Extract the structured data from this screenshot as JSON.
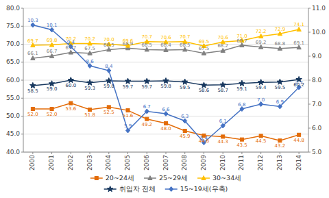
{
  "chart_data": {
    "type": "line",
    "categories": [
      "2000",
      "2001",
      "2002",
      "2003",
      "2004",
      "2005",
      "2006",
      "2007",
      "2008",
      "2009",
      "2010",
      "2011",
      "2012",
      "2013",
      "2014"
    ],
    "ylim": [
      40.0,
      80.0
    ],
    "yticks": [
      {
        "value": 40.0,
        "label": "40.0"
      },
      {
        "value": 45.0,
        "label": "45.0"
      },
      {
        "value": 50.0,
        "label": "50.0"
      },
      {
        "value": 55.0,
        "label": "55.0"
      },
      {
        "value": 60.0,
        "label": "60.0"
      },
      {
        "value": 65.0,
        "label": "65.0"
      },
      {
        "value": 70.0,
        "label": "70.0"
      },
      {
        "value": 75.0,
        "label": "75.0"
      },
      {
        "value": 80.0,
        "label": "80.0"
      }
    ],
    "y2lim": [
      5.0,
      11.0
    ],
    "y2ticks": [
      {
        "value": 5.0,
        "label": "5.0"
      },
      {
        "value": 6.0,
        "label": "6.0"
      },
      {
        "value": 7.0,
        "label": "7.0"
      },
      {
        "value": 8.0,
        "label": "8.0"
      },
      {
        "value": 9.0,
        "label": "9.0"
      },
      {
        "value": 10.0,
        "label": "10.0"
      },
      {
        "value": 11.0,
        "label": "11.0"
      }
    ],
    "grid": true,
    "legend": "bottom",
    "data_labels": true,
    "series": [
      {
        "name": "20~24세",
        "color": "#e36c09",
        "marker": "square",
        "values": [
          52.0,
          52.0,
          53.6,
          51.8,
          52.5,
          51.6,
          49.2,
          48.0,
          45.9,
          44.6,
          44.3,
          43.5,
          44.5,
          43.2,
          44.8
        ],
        "value_labels": [
          "52.0",
          "52.0",
          "53.6",
          "51.8",
          "52.5",
          "51.6",
          "49.2",
          "48.0",
          "45.9",
          "44.6",
          "44.3",
          "43.5",
          "44.5",
          "43.2",
          "44.8"
        ]
      },
      {
        "name": "25~29세",
        "color": "#808080",
        "marker": "triangle",
        "values": [
          66.1,
          66.7,
          67.7,
          67.5,
          68.5,
          68.9,
          68.5,
          68.4,
          68.5,
          67.5,
          68.2,
          69.7,
          69.2,
          68.8,
          69.1
        ],
        "value_labels": [
          "66.1",
          "66.7",
          "67.7",
          "67.5",
          "68.5",
          "68.9",
          "68.5",
          "68.4",
          "68.5",
          "67.5",
          "68.2",
          "69.7",
          "69.2",
          "68.8",
          "69.1"
        ]
      },
      {
        "name": "30~34세",
        "color": "#ffc000",
        "marker": "triangle",
        "values": [
          69.7,
          69.8,
          70.2,
          70.2,
          70.0,
          69.6,
          70.7,
          70.6,
          70.7,
          69.5,
          70.6,
          71.0,
          72.2,
          72.9,
          74.1
        ],
        "value_labels": [
          "69.7",
          "69.8",
          "70.2",
          "70.2",
          "70.0",
          "69.6",
          "70.7",
          "70.6",
          "70.7",
          "69.5",
          "70.6",
          "71.0",
          "72.2",
          "72.9",
          "74.1"
        ]
      },
      {
        "name": "취업자 전체",
        "color": "#17375e",
        "marker": "star",
        "values": [
          58.5,
          59.0,
          60.0,
          59.3,
          59.8,
          59.7,
          59.7,
          59.8,
          59.5,
          58.6,
          58.7,
          59.1,
          59.4,
          59.5,
          60.2
        ],
        "value_labels": [
          "58.5",
          "59.0",
          "60.0",
          "59.3",
          "59.8",
          "59.7",
          "59.7",
          "59.8",
          "59.5",
          "58.6",
          "58.7",
          "59.1",
          "59.4",
          "59.5",
          "60.2"
        ]
      },
      {
        "name": "15~19세(우축)",
        "color": "#4472c4",
        "marker": "diamond",
        "axis": "y2",
        "values": [
          10.3,
          10.1,
          9.4,
          8.6,
          8.4,
          5.9,
          6.7,
          6.6,
          6.3,
          5.4,
          6.1,
          6.8,
          7.0,
          6.9,
          7.7
        ],
        "value_labels": [
          "10.3",
          "10.1",
          "9.4",
          "8.6",
          "8.4",
          "5.9",
          "6.7",
          "6.6",
          "6.3",
          "5.4",
          "6.1",
          "6.8",
          "7.0",
          "6.9",
          "7.7"
        ]
      }
    ]
  }
}
